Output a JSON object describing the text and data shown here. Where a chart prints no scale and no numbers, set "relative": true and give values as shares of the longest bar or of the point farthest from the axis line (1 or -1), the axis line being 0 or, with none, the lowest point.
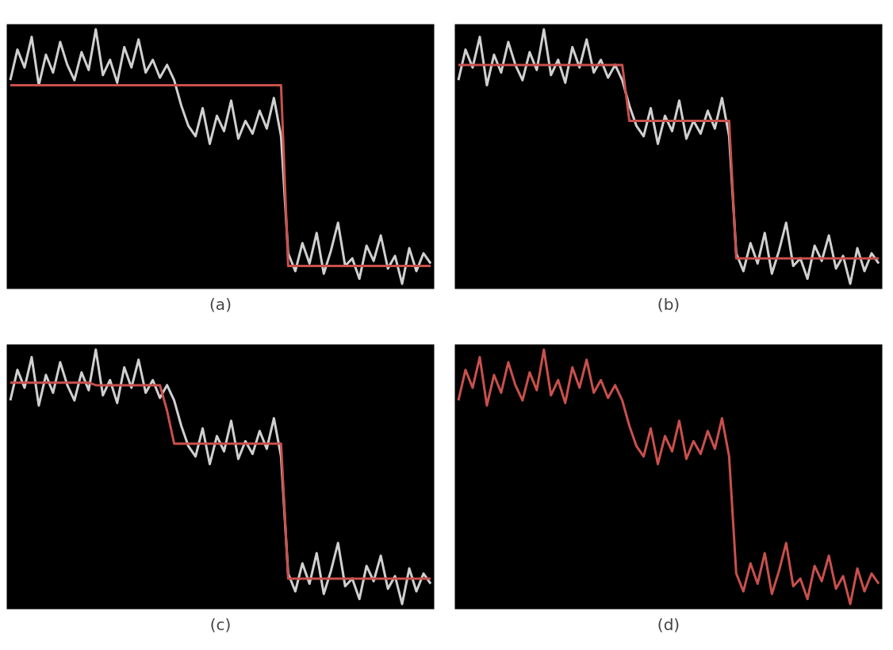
{
  "chart_data": [
    {
      "type": "line",
      "relative": true,
      "annotations": [
        "(a)"
      ],
      "categories": [
        null,
        null,
        null,
        null,
        null,
        null,
        null,
        null,
        null,
        null,
        null,
        null,
        null,
        null,
        null,
        null,
        null,
        null,
        null,
        null,
        null,
        null,
        null,
        null,
        null,
        null,
        null,
        null,
        null,
        null,
        null,
        null,
        null,
        null,
        null,
        null,
        null,
        null,
        null,
        null,
        null,
        null,
        null,
        null,
        null,
        null,
        null,
        null,
        null,
        null,
        null,
        null,
        null,
        null,
        null,
        null,
        null,
        null,
        null,
        null
      ],
      "series": [
        {
          "color": "#d0d0d0",
          "values": [
            0.8,
            0.92,
            0.85,
            0.97,
            0.78,
            0.9,
            0.83,
            0.95,
            0.86,
            0.8,
            0.91,
            0.84,
            1.0,
            0.82,
            0.88,
            0.79,
            0.93,
            0.85,
            0.96,
            0.83,
            0.88,
            0.81,
            0.86,
            0.8,
            0.7,
            0.62,
            0.58,
            0.69,
            0.55,
            0.66,
            0.6,
            0.72,
            0.57,
            0.64,
            0.59,
            0.68,
            0.61,
            0.73,
            0.58,
            0.12,
            0.05,
            0.16,
            0.08,
            0.2,
            0.04,
            0.13,
            0.24,
            0.07,
            0.1,
            0.02,
            0.15,
            0.09,
            0.19,
            0.06,
            0.11,
            0.0,
            0.14,
            0.05,
            0.12,
            0.08
          ]
        },
        {
          "color": "#c9504c",
          "values": [
            0.78,
            0.78,
            0.78,
            0.78,
            0.78,
            0.78,
            0.78,
            0.78,
            0.78,
            0.78,
            0.78,
            0.78,
            0.78,
            0.78,
            0.78,
            0.78,
            0.78,
            0.78,
            0.78,
            0.78,
            0.78,
            0.78,
            0.78,
            0.78,
            0.78,
            0.78,
            0.78,
            0.78,
            0.78,
            0.78,
            0.78,
            0.78,
            0.78,
            0.78,
            0.78,
            0.78,
            0.78,
            0.78,
            0.78,
            0.07,
            0.07,
            0.07,
            0.07,
            0.07,
            0.07,
            0.07,
            0.07,
            0.07,
            0.07,
            0.07,
            0.07,
            0.07,
            0.07,
            0.07,
            0.07,
            0.07,
            0.07,
            0.07,
            0.07,
            0.07
          ]
        }
      ]
    },
    {
      "type": "line",
      "relative": true,
      "annotations": [
        "(b)"
      ],
      "categories": [
        null,
        null,
        null,
        null,
        null,
        null,
        null,
        null,
        null,
        null,
        null,
        null,
        null,
        null,
        null,
        null,
        null,
        null,
        null,
        null,
        null,
        null,
        null,
        null,
        null,
        null,
        null,
        null,
        null,
        null,
        null,
        null,
        null,
        null,
        null,
        null,
        null,
        null,
        null,
        null,
        null,
        null,
        null,
        null,
        null,
        null,
        null,
        null,
        null,
        null,
        null,
        null,
        null,
        null,
        null,
        null,
        null,
        null,
        null,
        null
      ],
      "series": [
        {
          "color": "#d0d0d0",
          "values": [
            0.8,
            0.92,
            0.85,
            0.97,
            0.78,
            0.9,
            0.83,
            0.95,
            0.86,
            0.8,
            0.91,
            0.84,
            1.0,
            0.82,
            0.88,
            0.79,
            0.93,
            0.85,
            0.96,
            0.83,
            0.88,
            0.81,
            0.86,
            0.8,
            0.7,
            0.62,
            0.58,
            0.69,
            0.55,
            0.66,
            0.6,
            0.72,
            0.57,
            0.64,
            0.59,
            0.68,
            0.61,
            0.73,
            0.58,
            0.12,
            0.05,
            0.16,
            0.08,
            0.2,
            0.04,
            0.13,
            0.24,
            0.07,
            0.1,
            0.02,
            0.15,
            0.09,
            0.19,
            0.06,
            0.11,
            0.0,
            0.14,
            0.05,
            0.12,
            0.08
          ]
        },
        {
          "color": "#c9504c",
          "values": [
            0.86,
            0.86,
            0.86,
            0.86,
            0.86,
            0.86,
            0.86,
            0.86,
            0.86,
            0.86,
            0.86,
            0.86,
            0.86,
            0.86,
            0.86,
            0.86,
            0.86,
            0.86,
            0.86,
            0.86,
            0.86,
            0.86,
            0.86,
            0.86,
            0.64,
            0.64,
            0.64,
            0.64,
            0.64,
            0.64,
            0.64,
            0.64,
            0.64,
            0.64,
            0.64,
            0.64,
            0.64,
            0.64,
            0.64,
            0.1,
            0.1,
            0.1,
            0.1,
            0.1,
            0.1,
            0.1,
            0.1,
            0.1,
            0.1,
            0.1,
            0.1,
            0.1,
            0.1,
            0.1,
            0.1,
            0.1,
            0.1,
            0.1,
            0.1,
            0.1
          ]
        }
      ]
    },
    {
      "type": "line",
      "relative": true,
      "annotations": [
        "(c)"
      ],
      "categories": [
        null,
        null,
        null,
        null,
        null,
        null,
        null,
        null,
        null,
        null,
        null,
        null,
        null,
        null,
        null,
        null,
        null,
        null,
        null,
        null,
        null,
        null,
        null,
        null,
        null,
        null,
        null,
        null,
        null,
        null,
        null,
        null,
        null,
        null,
        null,
        null,
        null,
        null,
        null,
        null,
        null,
        null,
        null,
        null,
        null,
        null,
        null,
        null,
        null,
        null,
        null,
        null,
        null,
        null,
        null,
        null,
        null,
        null,
        null,
        null
      ],
      "series": [
        {
          "color": "#d0d0d0",
          "values": [
            0.8,
            0.92,
            0.85,
            0.97,
            0.78,
            0.9,
            0.83,
            0.95,
            0.86,
            0.8,
            0.91,
            0.84,
            1.0,
            0.82,
            0.88,
            0.79,
            0.93,
            0.85,
            0.96,
            0.83,
            0.88,
            0.81,
            0.86,
            0.8,
            0.7,
            0.62,
            0.58,
            0.69,
            0.55,
            0.66,
            0.6,
            0.72,
            0.57,
            0.64,
            0.59,
            0.68,
            0.61,
            0.73,
            0.58,
            0.12,
            0.05,
            0.16,
            0.08,
            0.2,
            0.04,
            0.13,
            0.24,
            0.07,
            0.1,
            0.02,
            0.15,
            0.09,
            0.19,
            0.06,
            0.11,
            0.0,
            0.14,
            0.05,
            0.12,
            0.08
          ]
        },
        {
          "color": "#c9504c",
          "values": [
            0.87,
            0.87,
            0.87,
            0.87,
            0.87,
            0.87,
            0.87,
            0.87,
            0.87,
            0.87,
            0.87,
            0.87,
            0.86,
            0.86,
            0.86,
            0.86,
            0.86,
            0.86,
            0.86,
            0.86,
            0.86,
            0.86,
            0.76,
            0.63,
            0.63,
            0.63,
            0.63,
            0.63,
            0.63,
            0.63,
            0.63,
            0.63,
            0.63,
            0.63,
            0.63,
            0.63,
            0.63,
            0.63,
            0.63,
            0.1,
            0.1,
            0.1,
            0.1,
            0.1,
            0.1,
            0.1,
            0.1,
            0.1,
            0.1,
            0.1,
            0.1,
            0.1,
            0.1,
            0.1,
            0.1,
            0.1,
            0.1,
            0.1,
            0.1,
            0.1
          ]
        }
      ]
    },
    {
      "type": "line",
      "relative": true,
      "annotations": [
        "(d)"
      ],
      "categories": [
        null,
        null,
        null,
        null,
        null,
        null,
        null,
        null,
        null,
        null,
        null,
        null,
        null,
        null,
        null,
        null,
        null,
        null,
        null,
        null,
        null,
        null,
        null,
        null,
        null,
        null,
        null,
        null,
        null,
        null,
        null,
        null,
        null,
        null,
        null,
        null,
        null,
        null,
        null,
        null,
        null,
        null,
        null,
        null,
        null,
        null,
        null,
        null,
        null,
        null,
        null,
        null,
        null,
        null,
        null,
        null,
        null,
        null,
        null,
        null
      ],
      "series": [
        {
          "color": "#c9504c",
          "values": [
            0.8,
            0.92,
            0.85,
            0.97,
            0.78,
            0.9,
            0.83,
            0.95,
            0.86,
            0.8,
            0.91,
            0.84,
            1.0,
            0.82,
            0.88,
            0.79,
            0.93,
            0.85,
            0.96,
            0.83,
            0.88,
            0.81,
            0.86,
            0.8,
            0.7,
            0.62,
            0.58,
            0.69,
            0.55,
            0.66,
            0.6,
            0.72,
            0.57,
            0.64,
            0.59,
            0.68,
            0.61,
            0.73,
            0.58,
            0.12,
            0.05,
            0.16,
            0.08,
            0.2,
            0.04,
            0.13,
            0.24,
            0.07,
            0.1,
            0.02,
            0.15,
            0.09,
            0.19,
            0.06,
            0.11,
            0.0,
            0.14,
            0.05,
            0.12,
            0.08
          ]
        }
      ]
    }
  ]
}
